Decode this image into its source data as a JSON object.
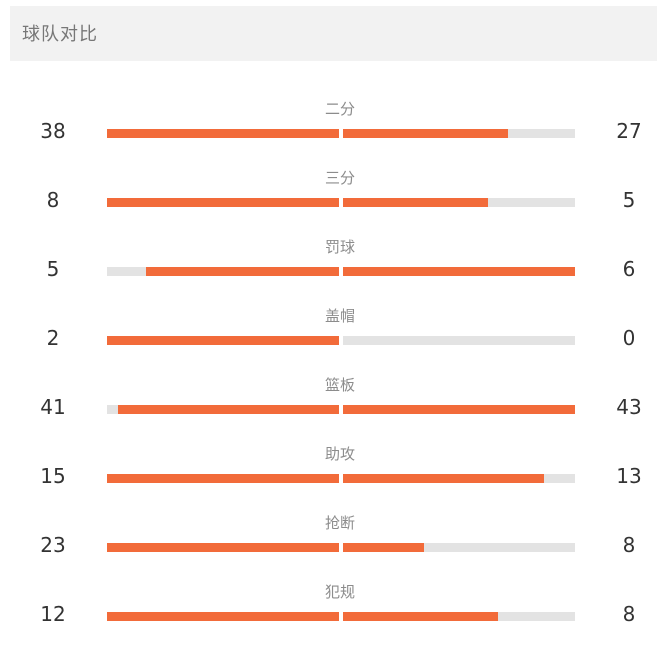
{
  "header": {
    "title": "球队对比"
  },
  "colors": {
    "accent": "#f26b3a",
    "track": "#e3e3e3",
    "header_bg": "#f2f2f2"
  },
  "stats": [
    {
      "label": "二分",
      "left": "38",
      "right": "27",
      "left_fill": 1.0,
      "right_fill": 0.71
    },
    {
      "label": "三分",
      "left": "8",
      "right": "5",
      "left_fill": 1.0,
      "right_fill": 0.625
    },
    {
      "label": "罚球",
      "left": "5",
      "right": "6",
      "left_fill": 0.833,
      "right_fill": 1.0
    },
    {
      "label": "盖帽",
      "left": "2",
      "right": "0",
      "left_fill": 1.0,
      "right_fill": 0.0
    },
    {
      "label": "篮板",
      "left": "41",
      "right": "43",
      "left_fill": 0.953,
      "right_fill": 1.0
    },
    {
      "label": "助攻",
      "left": "15",
      "right": "13",
      "left_fill": 1.0,
      "right_fill": 0.867
    },
    {
      "label": "抢断",
      "left": "23",
      "right": "8",
      "left_fill": 1.0,
      "right_fill": 0.348
    },
    {
      "label": "犯规",
      "left": "12",
      "right": "8",
      "left_fill": 1.0,
      "right_fill": 0.667
    }
  ]
}
